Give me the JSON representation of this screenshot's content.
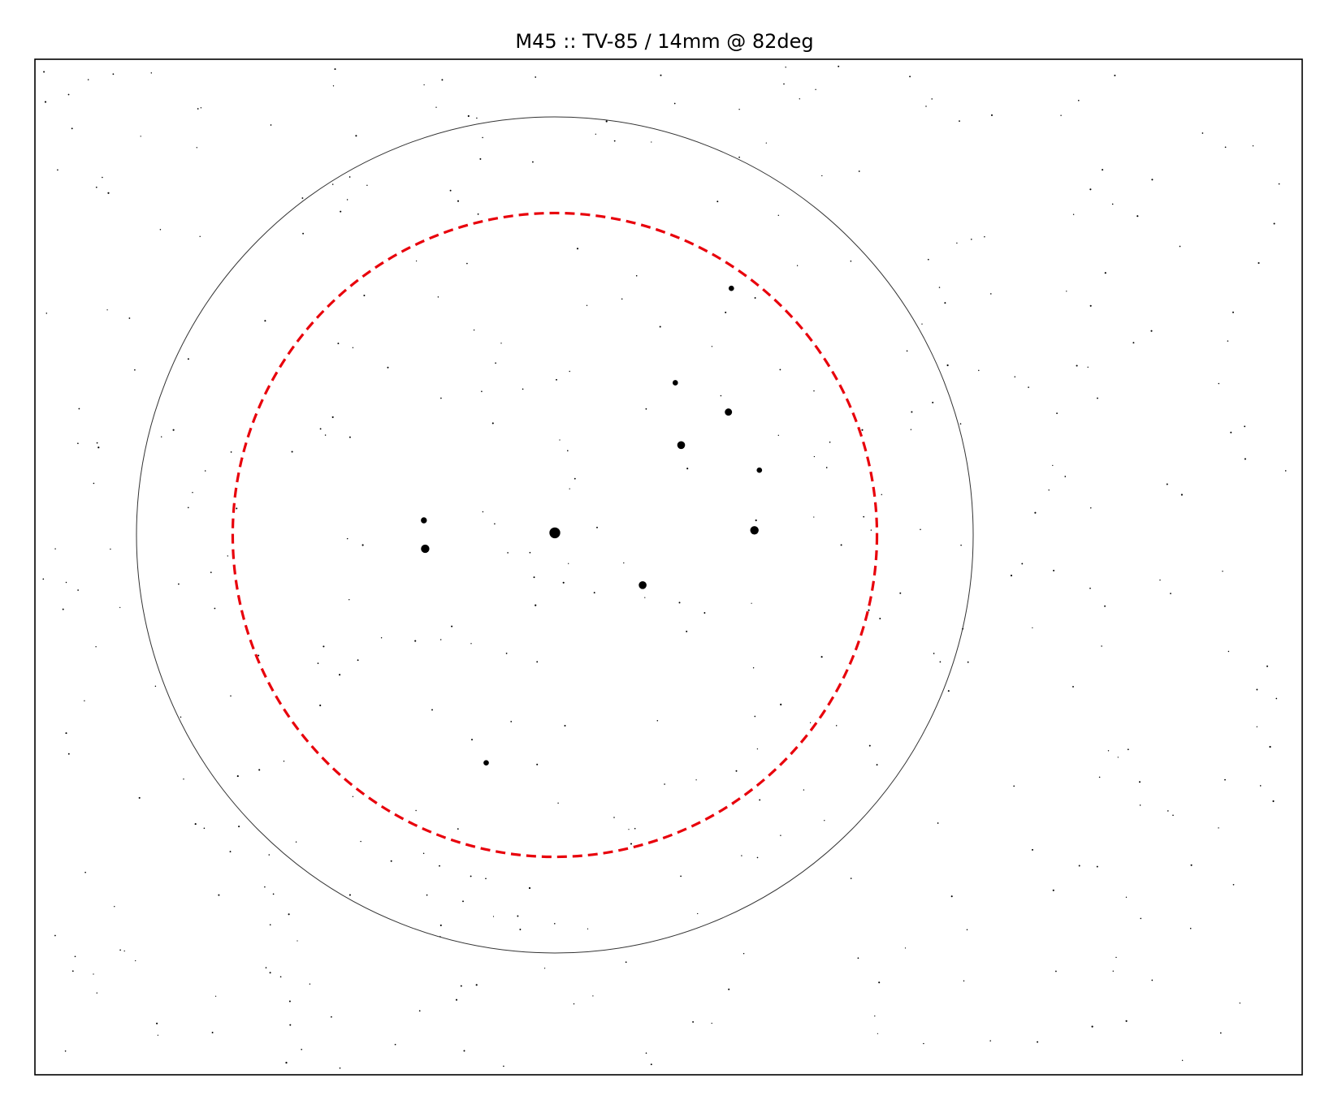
{
  "chart_data": {
    "type": "scatter",
    "title": "M45 :: TV-85 / 14mm @ 82deg",
    "xlabel": "",
    "ylabel": "",
    "grid": false,
    "axes_ticks": false,
    "field_stop_circle": {
      "center": [
        0,
        0
      ],
      "radius": 1.0,
      "color": "#333333",
      "style": "solid"
    },
    "true_fov_circle": {
      "center": [
        0,
        0
      ],
      "radius": 0.77,
      "color": "#e8000b",
      "style": "dashed"
    },
    "xlim": [
      -1.24,
      1.78
    ],
    "ylim": [
      -1.29,
      1.14
    ],
    "bright_stars": [
      {
        "x": 0.0,
        "y": 0.005,
        "size": 9
      },
      {
        "x": -0.31,
        "y": -0.033,
        "size": 7
      },
      {
        "x": -0.313,
        "y": 0.035,
        "size": 5
      },
      {
        "x": 0.21,
        "y": -0.12,
        "size": 6.5
      },
      {
        "x": 0.477,
        "y": 0.011,
        "size": 7
      },
      {
        "x": 0.302,
        "y": 0.215,
        "size": 6.5
      },
      {
        "x": 0.415,
        "y": 0.294,
        "size": 6
      },
      {
        "x": 0.489,
        "y": 0.155,
        "size": 4.5
      },
      {
        "x": 0.288,
        "y": 0.364,
        "size": 4.5
      },
      {
        "x": 0.422,
        "y": 0.59,
        "size": 4.5
      },
      {
        "x": -0.164,
        "y": -0.545,
        "size": 4.5
      }
    ],
    "field_star_colors": "#000000"
  }
}
